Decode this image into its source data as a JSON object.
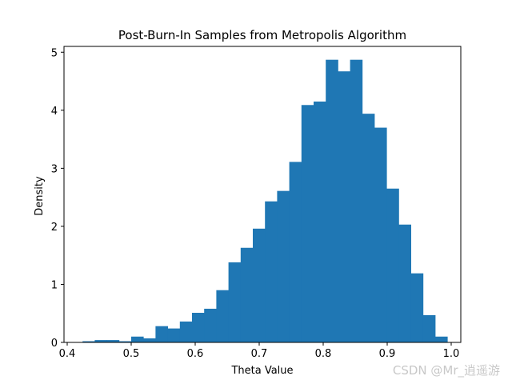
{
  "chart_data": {
    "type": "bar",
    "title": "Post-Burn-In Samples from Metropolis Algorithm",
    "xlabel": "Theta Value",
    "ylabel": "Density",
    "xlim": [
      0.395,
      1.015
    ],
    "ylim": [
      0,
      5.1
    ],
    "xticks": [
      "0.4",
      "0.5",
      "0.6",
      "0.7",
      "0.8",
      "0.9",
      "1.0"
    ],
    "yticks": [
      "0",
      "1",
      "2",
      "3",
      "4",
      "5"
    ],
    "bar_color": "#1f77b4",
    "bins": [
      {
        "x0": 0.424,
        "x1": 0.443,
        "value": 0.02
      },
      {
        "x0": 0.443,
        "x1": 0.462,
        "value": 0.04
      },
      {
        "x0": 0.462,
        "x1": 0.481,
        "value": 0.04
      },
      {
        "x0": 0.481,
        "x1": 0.5,
        "value": 0.02
      },
      {
        "x0": 0.5,
        "x1": 0.519,
        "value": 0.1
      },
      {
        "x0": 0.519,
        "x1": 0.538,
        "value": 0.07
      },
      {
        "x0": 0.538,
        "x1": 0.557,
        "value": 0.28
      },
      {
        "x0": 0.557,
        "x1": 0.576,
        "value": 0.24
      },
      {
        "x0": 0.576,
        "x1": 0.595,
        "value": 0.36
      },
      {
        "x0": 0.595,
        "x1": 0.614,
        "value": 0.51
      },
      {
        "x0": 0.614,
        "x1": 0.633,
        "value": 0.58
      },
      {
        "x0": 0.633,
        "x1": 0.652,
        "value": 0.9
      },
      {
        "x0": 0.652,
        "x1": 0.671,
        "value": 1.38
      },
      {
        "x0": 0.671,
        "x1": 0.69,
        "value": 1.63
      },
      {
        "x0": 0.69,
        "x1": 0.709,
        "value": 1.96
      },
      {
        "x0": 0.709,
        "x1": 0.728,
        "value": 2.43
      },
      {
        "x0": 0.728,
        "x1": 0.747,
        "value": 2.61
      },
      {
        "x0": 0.747,
        "x1": 0.766,
        "value": 3.11
      },
      {
        "x0": 0.766,
        "x1": 0.785,
        "value": 4.09
      },
      {
        "x0": 0.785,
        "x1": 0.804,
        "value": 4.15
      },
      {
        "x0": 0.804,
        "x1": 0.823,
        "value": 4.87
      },
      {
        "x0": 0.823,
        "x1": 0.842,
        "value": 4.67
      },
      {
        "x0": 0.842,
        "x1": 0.861,
        "value": 4.87
      },
      {
        "x0": 0.861,
        "x1": 0.88,
        "value": 3.94
      },
      {
        "x0": 0.88,
        "x1": 0.899,
        "value": 3.7
      },
      {
        "x0": 0.899,
        "x1": 0.918,
        "value": 2.65
      },
      {
        "x0": 0.918,
        "x1": 0.937,
        "value": 2.03
      },
      {
        "x0": 0.937,
        "x1": 0.956,
        "value": 1.19
      },
      {
        "x0": 0.956,
        "x1": 0.975,
        "value": 0.47
      },
      {
        "x0": 0.975,
        "x1": 0.994,
        "value": 0.1
      }
    ]
  },
  "watermark": "CSDN @Mr_逍遥游"
}
